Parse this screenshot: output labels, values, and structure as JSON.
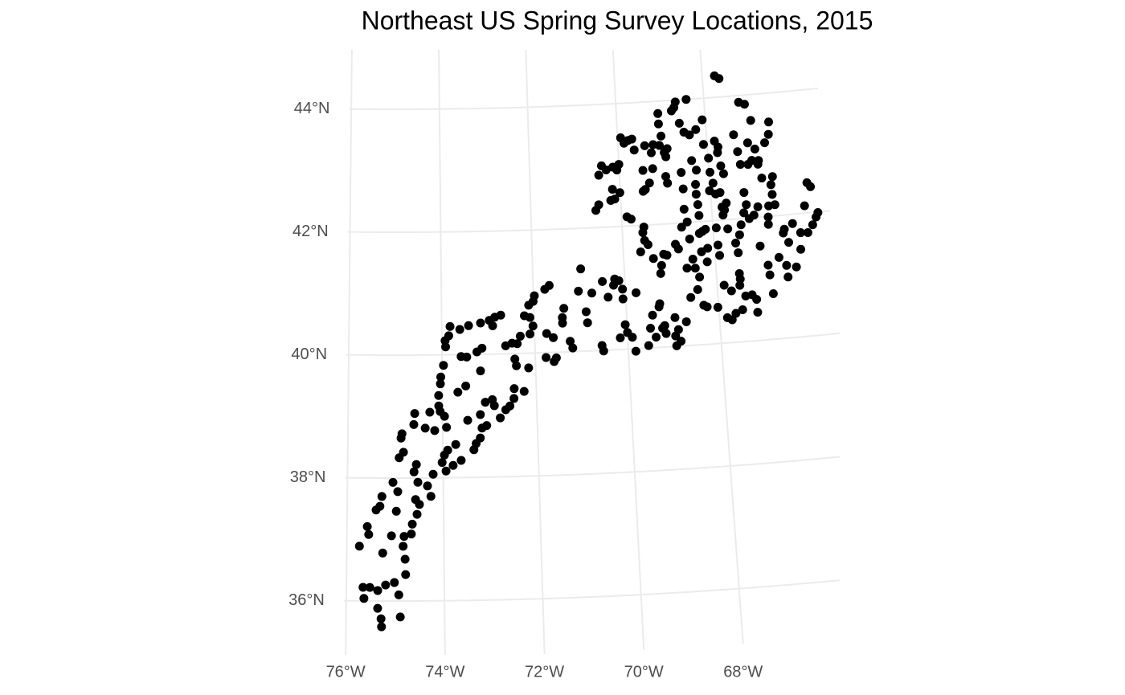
{
  "chart_data": {
    "type": "scatter",
    "title": "Northeast US Spring Survey Locations, 2015",
    "color": "#000000",
    "grid": true,
    "xlim": [
      -76.05,
      -65.4
    ],
    "ylim": [
      35.1,
      45.0
    ],
    "xticks": [
      {
        "value": -76,
        "label": "76°W"
      },
      {
        "value": -74,
        "label": "74°W"
      },
      {
        "value": -72,
        "label": "72°W"
      },
      {
        "value": -70,
        "label": "70°W"
      },
      {
        "value": -68,
        "label": "68°W"
      }
    ],
    "yticks": [
      {
        "value": 36,
        "label": "36°N"
      },
      {
        "value": 38,
        "label": "38°N"
      },
      {
        "value": 40,
        "label": "40°N"
      },
      {
        "value": 42,
        "label": "42°N"
      },
      {
        "value": 44,
        "label": "44°N"
      }
    ],
    "x": [
      -75.28,
      -75.29,
      -75.36,
      -74.9,
      -74.93,
      -75.02,
      -74.79,
      -74.8,
      -74.84,
      -75.66,
      -75.52,
      -75.36,
      -75.2,
      -75.64,
      -75.74,
      -75.55,
      -75.58,
      -75.4,
      -75.28,
      -75.32,
      -75.26,
      -75.08,
      -74.98,
      -74.95,
      -75.05,
      -74.82,
      -74.67,
      -74.65,
      -74.55,
      -74.5,
      -74.58,
      -74.61,
      -74.56,
      -74.53,
      -74.33,
      -74.26,
      -74.21,
      -74.92,
      -74.83,
      -74.88,
      -74.86,
      -74.61,
      -74.59,
      -74.37,
      -74.27,
      -74.17,
      -74.08,
      -74.08,
      -74.04,
      -74.03,
      -73.97,
      -73.92,
      -73.93,
      -73.85,
      -73.82,
      -73.61,
      -73.42,
      -74.05,
      -73.96,
      -73.92,
      -73.9,
      -73.97,
      -73.73,
      -74.02,
      -73.94,
      -73.79,
      -73.62,
      -73.47,
      -73.67,
      -73.5,
      -73.59,
      -73.47,
      -73.25,
      -73.14,
      -73.16,
      -72.97,
      -72.85,
      -72.72,
      -72.9,
      -73.18,
      -73.2,
      -73.09,
      -72.94,
      -72.9,
      -73.35,
      -73.3,
      -73.21,
      -73.17,
      -73.07,
      -72.78,
      -72.66,
      -72.57,
      -72.48,
      -72.47,
      -72.26,
      -72.63,
      -72.49,
      -72.38,
      -72.44,
      -72.41,
      -72.15,
      -72.31,
      -72.1,
      -72.03,
      -72.21,
      -72.11,
      -72.01,
      -71.98,
      -72.09,
      -71.75,
      -71.65,
      -71.6,
      -71.77,
      -71.55,
      -71.74,
      -71.6,
      -71.39,
      -71.39,
      -71.35,
      -71.24,
      -71.19,
      -71.02,
      -70.95,
      -70.87,
      -70.85,
      -70.73,
      -70.49,
      -70.56,
      -70.53,
      -70.38,
      -70.25,
      -70.22,
      -70.13,
      -70.06,
      -70.06,
      -70.04,
      -70.16,
      -70.0,
      -69.9,
      -69.77,
      -69.84,
      -69.56,
      -69.5,
      -69.44,
      -69.29,
      -69.24,
      -69.19,
      -69.17,
      -69.27,
      -69.39,
      -68.96,
      -68.9,
      -68.97,
      -68.72,
      -68.96,
      -68.86,
      -68.59,
      -68.43,
      -68.37,
      -68.45,
      -68.32,
      -68.25,
      -68.02,
      -67.85,
      -67.83,
      -67.73,
      -67.64,
      -67.49,
      -67.4,
      -67.26,
      -67.51,
      -67.49,
      -67.7,
      -67.5,
      -67.17,
      -67.17,
      -66.86,
      -66.84,
      -66.8,
      -66.61,
      -66.37,
      -66.45,
      -66.46,
      -66.25,
      -66.12,
      -66.09,
      -65.93,
      -65.81,
      -65.72,
      -65.67,
      -65.95,
      -65.85,
      -65.78,
      -66.25,
      -66.44,
      -66.47,
      -66.6,
      -66.77,
      -66.78,
      -67.0,
      -66.74,
      -66.64,
      -66.65,
      -66.6,
      -66.84,
      -66.9,
      -66.61,
      -66.71,
      -66.58,
      -66.88,
      -67.03,
      -67.12,
      -66.94,
      -67.09,
      -66.98,
      -67.09,
      -67.22,
      -67.39,
      -67.33,
      -67.29,
      -67.26,
      -67.3,
      -67.19,
      -67.08,
      -66.98,
      -67.23,
      -67.38,
      -67.43,
      -67.53,
      -67.49,
      -67.68,
      -67.76,
      -67.77,
      -67.79,
      -67.67,
      -67.93,
      -67.92,
      -67.9,
      -67.72,
      -67.93,
      -67.89,
      -67.78,
      -67.76,
      -67.83,
      -67.73,
      -67.68,
      -68.08,
      -68.07,
      -67.99,
      -68.02,
      -67.98,
      -68.37,
      -68.38,
      -68.23,
      -68.4,
      -68.69,
      -68.59,
      -68.5,
      -68.75,
      -68.9,
      -68.94,
      -69.06,
      -69.06,
      -69.07,
      -69.26,
      -69.25,
      -68.97,
      -68.94,
      -68.62,
      -68.28,
      -68.32,
      -68.6,
      -68.61,
      -68.32,
      -68.3,
      -68.29,
      -68.17,
      -68.31,
      -68.15,
      -68.29,
      -68.24,
      -68.56,
      -68.69,
      -68.79,
      -68.63,
      -68.49,
      -68.53,
      -68.85,
      -69.05,
      -69.12,
      -69.18,
      -69.21,
      -69.35,
      -69.45,
      -69.55,
      -69.52,
      -69.62,
      -69.52,
      -69.88,
      -69.79,
      -70.01,
      -70.17,
      -70.22,
      -70.46,
      -70.29,
      -70.39,
      -70.14,
      -70.05,
      -70.0,
      -69.86,
      -69.77,
      -69.68,
      -69.64,
      -69.4,
      -69.47,
      -69.34,
      -69.49,
      -69.44,
      -68.97,
      -69.21,
      -69.02,
      -69.93,
      -70.13,
      -70.49,
      -70.56,
      -68.65,
      -67.72,
      -67.62,
      -68.18
    ],
    "y": [
      35.58,
      35.71,
      35.88,
      35.74,
      36.1,
      36.3,
      36.43,
      36.68,
      36.89,
      36.22,
      36.22,
      36.17,
      36.26,
      36.04,
      36.89,
      37.08,
      37.21,
      37.48,
      37.7,
      37.54,
      36.78,
      37.06,
      37.46,
      37.78,
      37.93,
      37.05,
      37.09,
      37.25,
      37.41,
      37.57,
      37.65,
      38.1,
      38.22,
      37.93,
      37.87,
      37.7,
      38.06,
      38.33,
      38.42,
      38.65,
      38.72,
      38.87,
      39.05,
      38.81,
      39.07,
      38.77,
      39.17,
      39.34,
      39.53,
      39.64,
      39.83,
      40.13,
      40.23,
      40.31,
      40.46,
      40.41,
      40.47,
      39.08,
      39.0,
      38.82,
      38.45,
      38.37,
      38.54,
      38.25,
      38.11,
      38.2,
      38.28,
      38.93,
      39.39,
      39.49,
      39.97,
      39.96,
      40.04,
      40.1,
      40.51,
      40.55,
      40.6,
      40.63,
      40.46,
      39.73,
      39.02,
      39.22,
      39.26,
      39.16,
      38.45,
      38.55,
      38.64,
      38.8,
      38.84,
      38.96,
      39.09,
      39.15,
      39.27,
      39.43,
      39.38,
      40.13,
      40.17,
      40.16,
      39.91,
      39.8,
      39.76,
      40.28,
      40.31,
      40.44,
      40.61,
      40.78,
      40.84,
      40.93,
      40.58,
      41.03,
      41.09,
      39.85,
      39.92,
      39.91,
      40.31,
      40.24,
      40.47,
      40.56,
      40.71,
      40.17,
      40.06,
      40.98,
      41.34,
      40.64,
      40.46,
      40.94,
      41.12,
      40.08,
      39.99,
      40.86,
      41.05,
      41.15,
      41.12,
      40.98,
      40.82,
      40.4,
      40.19,
      40.27,
      40.19,
      40.91,
      39.96,
      40.04,
      40.32,
      40.53,
      40.66,
      40.31,
      40.35,
      40.22,
      40.71,
      40.17,
      40.47,
      40.27,
      40.17,
      40.39,
      40.01,
      40.08,
      40.78,
      40.9,
      41.1,
      41.25,
      40.64,
      40.61,
      40.59,
      40.94,
      40.41,
      40.37,
      40.47,
      40.52,
      40.74,
      40.75,
      40.92,
      41.02,
      40.84,
      41.11,
      40.67,
      40.46,
      41.21,
      41.05,
      40.74,
      41.32,
      41.55,
      40.99,
      41.18,
      41.14,
      41.42,
      41.69,
      41.68,
      41.8,
      41.92,
      41.99,
      42.12,
      42.49,
      42.42,
      41.85,
      41.77,
      41.71,
      42.18,
      41.99,
      41.87,
      41.53,
      42.17,
      42.35,
      42.51,
      42.64,
      42.63,
      42.86,
      43.33,
      43.2,
      43.53,
      42.92,
      42.93,
      42.87,
      43.11,
      43.22,
      43.58,
      43.85,
      43.89,
      43.37,
      43.09,
      42.88,
      42.42,
      42.09,
      41.99,
      42.04,
      42.17,
      42.22,
      41.9,
      41.74,
      41.61,
      41.45,
      41.85,
      42.08,
      42.21,
      42.45,
      42.27,
      41.88,
      41.6,
      41.43,
      42.16,
      42.61,
      42.43,
      43.1,
      43.19,
      43.29,
      42.88,
      42.75,
      43.25,
      43.65,
      43.02,
      42.49,
      42.79,
      43.0,
      43.42,
      43.5,
      44.0,
      43.88,
      43.62,
      43.47,
      43.83,
      43.22,
      43.09,
      43.8,
      43.63,
      43.28,
      43.17,
      42.91,
      42.77,
      42.66,
      42.82,
      42.84,
      42.61,
      42.55,
      42.22,
      42.45,
      42.28,
      42.1,
      41.87,
      41.81,
      41.56,
      41.51,
      41.84,
      42.01,
      41.93,
      41.58,
      41.26,
      41.4,
      41.73,
      41.66,
      41.49,
      41.51,
      41.33,
      41.2,
      41.45,
      41.68,
      41.88,
      41.75,
      41.57,
      41.97,
      42.15,
      42.11,
      42.55,
      42.61,
      42.43,
      42.85,
      42.93,
      43.0,
      42.97,
      42.92,
      43.01,
      43.35,
      43.39,
      43.41,
      43.23,
      43.29,
      42.89,
      42.68,
      42.55,
      42.58,
      43.16,
      43.3,
      43.43,
      43.44,
      42.45,
      42.37,
      42.28,
      43.97,
      44.35,
      44.3,
      41.34
    ]
  }
}
